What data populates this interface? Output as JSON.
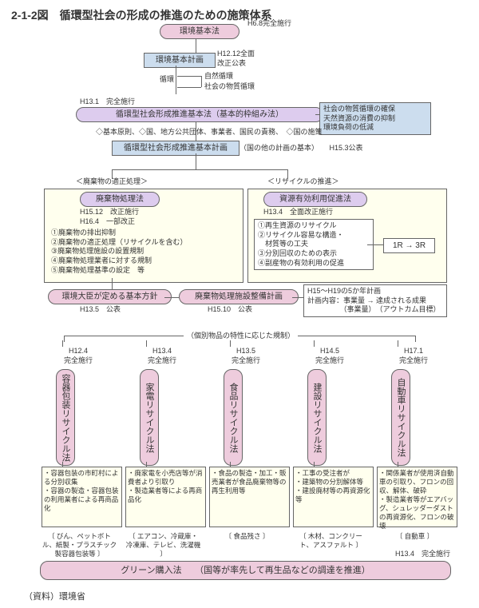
{
  "diagram_type": "flowchart",
  "background_color": "#ffffff",
  "box_colors": {
    "pink": "#eeccdd",
    "blue": "#ccddee",
    "purple": "#ddccee",
    "yellow": "#ffffee"
  },
  "border_color": "#666666",
  "text_color": "#333333",
  "title": "2-1-2図　循環型社会の形成の推進のための施策体系",
  "kankyo_kihonho": "環境基本法",
  "h68": "H6.8完全施行",
  "kankyo_kihon_keikaku": "環境基本計画",
  "h1212": "H12.12全面\n改正公表",
  "junkan": "循環",
  "shizen_junkan": "自然循環",
  "shakai_busshitsu": "社会の物質循環",
  "h131": "H13.1　完全施行",
  "junkangata_kihonho": "循環型社会形成推進基本法（基本的枠組み法）",
  "bluegreen_box": "社会の物質循環の確保\n天然資源の消費の抑制\n環境負荷の低減",
  "roles": "◇基本原則、◇国、地方公共団体、事業者、国民の責務、　◇国の施策",
  "junkangata_keikaku": "循環型社会形成推進基本計画",
  "kuni_hoka": "（国の他の計画の基本）　　H15.3公表",
  "haiki_header": "＜廃棄物の適正処理＞",
  "haiki_shori": "廃棄物処理法",
  "h1512": "H15.12　改正施行",
  "h164": "H16.4　一部改正",
  "haiki_list": "①廃棄物の排出抑制\n②廃棄物の適正処理（リサイクルを含む）\n③廃棄物処理施設の設置規制\n④廃棄物処理業者に対する規制\n⑤廃棄物処理基準の設定　等",
  "recycle_header": "＜リサイクルの推進＞",
  "shigen_yuko": "資源有効利用促進法",
  "h134_zenmen": "H13.4　全面改正施行",
  "shigen_list": "①再生資源のリサイクル\n②リサイクル容易な構造・\n　材質等の工夫\n③分別回収のための表示\n④副産物の有効利用の促進",
  "one_r_three_r": "1R → 3R",
  "kankyo_daijin": "環境大臣が定める基本方針",
  "h135_kohyo": "H13.5　公表",
  "haiki_shisetsu": "廃棄物処理施設整備計画",
  "h1510_kohyo": "H15.10　公表",
  "five_year": "H15～H19の5か年計画\n計画内容：事業量 → 達成される成果\n　　　　　（事業量）　（アウトカム目標）",
  "kobetsu_header": "（個別物品の特性に応じた規制）",
  "laws": [
    {
      "date": "H12.4\n完全施行",
      "name": "容器包装リサイクル法",
      "desc": "・容器包装の市町村による分別収集\n・容器の製造・容器包装の利用業者による再商品化"
    },
    {
      "date": "H13.4\n完全施行",
      "name": "家電リサイクル法",
      "desc": "・廃家電を小売店等が消費者より引取り\n・製造業者等による再商品化"
    },
    {
      "date": "H13.5\n完全施行",
      "name": "食品リサイクル法",
      "desc": "・食品の製造・加工・販売業者が食品廃棄物等の再生利用等"
    },
    {
      "date": "H14.5\n完全施行",
      "name": "建設リサイクル法",
      "desc": "・工事の受注者が\n・建築物の分別解体等\n・建設廃材等の再資源化等"
    },
    {
      "date": "H17.1\n完全施行",
      "name": "自動車リサイクル法",
      "desc": "・関係業者が使用済自動車の引取り、フロンの回収、解体、破砕\n・製造業者等がエアバッグ、シュレッダーダストの再資源化、フロンの破壊"
    }
  ],
  "items": [
    "びん、ペットボトル、紙製・プラスチック製容器包装等",
    "エアコン、冷蔵庫・冷凍庫、テレビ、洗濯機",
    "食品残さ",
    "木材、コンクリート、アスファルト",
    "自動車"
  ],
  "h134_kanzen": "H13.4　完全施行",
  "green": "グリーン購入法　　（国等が率先して再生品などの調達を推進）",
  "source": "（資料）環境省"
}
